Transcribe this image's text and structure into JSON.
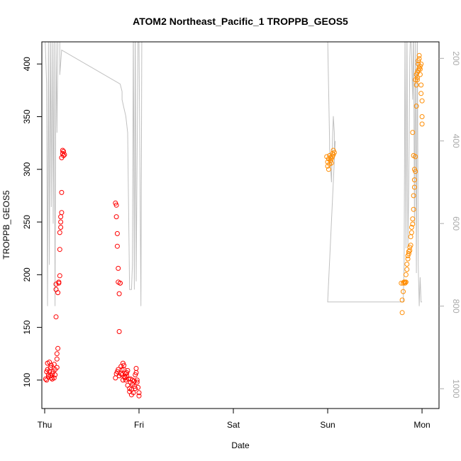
{
  "chart_data": {
    "type": "scatter",
    "title": "ATOM2 Northeast_Pacific_1 TROPPB_GEOS5",
    "xlabel": "Date",
    "ylabel": "TROPPB_GEOS5",
    "x_ticks": [
      "Thu",
      "Fri",
      "Sat",
      "Sun",
      "Mon"
    ],
    "xlim": [
      -0.03,
      4.18
    ],
    "ylim": [
      73,
      421
    ],
    "y_ticks": [
      100,
      150,
      200,
      250,
      300,
      350,
      400
    ],
    "y2_ticks": [
      200,
      400,
      600,
      800,
      1000
    ],
    "y2lim": [
      1048,
      160
    ],
    "grid": false,
    "colors": {
      "red": "#ff0000",
      "orange": "#ff8c00",
      "line": "#c0c0c0",
      "axis": "#000000",
      "right_axis": "#aaaaaa"
    },
    "line_series": {
      "axis": "right",
      "x": [
        0.0,
        0.02,
        0.03,
        0.04,
        0.05,
        0.06,
        0.07,
        0.08,
        0.09,
        0.1,
        0.11,
        0.12,
        0.13,
        0.14,
        0.16,
        0.16,
        0.18,
        0.8,
        0.82,
        0.82,
        0.84,
        0.86,
        0.88,
        0.9,
        0.92,
        0.93,
        0.94,
        0.95,
        0.96,
        0.97,
        0.99,
        1.0,
        1.02,
        1.03,
        1.3,
        1.4,
        1.5,
        2.0,
        2.5,
        3.0,
        3.02,
        3.02,
        3.03,
        3.04,
        3.05,
        3.06,
        3.07,
        3.07,
        3.08,
        3.0,
        3.8,
        3.81,
        3.82,
        3.83,
        3.84,
        3.85,
        3.86,
        3.87,
        3.88,
        3.89,
        3.9,
        3.91,
        3.92,
        3.93,
        3.94,
        3.95,
        3.96,
        3.97,
        3.98,
        3.99,
        4.0,
        4.0
      ],
      "y": [
        120,
        260,
        800,
        160,
        700,
        120,
        560,
        160,
        600,
        120,
        800,
        160,
        380,
        160,
        120,
        240,
        180,
        262,
        280,
        300,
        320,
        340,
        380,
        760,
        760,
        700,
        120,
        760,
        120,
        740,
        120,
        160,
        800,
        120,
        150,
        150,
        150,
        150,
        150,
        150,
        400,
        420,
        460,
        500,
        400,
        340,
        380,
        420,
        400,
        790,
        790,
        700,
        120,
        660,
        120,
        660,
        500,
        200,
        120,
        200,
        300,
        120,
        600,
        160,
        720,
        120,
        700,
        800,
        730,
        790,
        790,
        790
      ]
    },
    "red_series": {
      "axis": "left",
      "x": [
        0.01,
        0.02,
        0.02,
        0.03,
        0.03,
        0.04,
        0.04,
        0.05,
        0.05,
        0.06,
        0.06,
        0.07,
        0.07,
        0.08,
        0.08,
        0.09,
        0.1,
        0.1,
        0.11,
        0.11,
        0.12,
        0.12,
        0.12,
        0.13,
        0.13,
        0.13,
        0.14,
        0.14,
        0.15,
        0.15,
        0.16,
        0.16,
        0.16,
        0.17,
        0.17,
        0.17,
        0.18,
        0.18,
        0.18,
        0.19,
        0.19,
        0.2,
        0.2,
        0.21,
        0.75,
        0.76,
        0.76,
        0.77,
        0.77,
        0.78,
        0.78,
        0.79,
        0.79,
        0.8,
        0.8,
        0.81,
        0.81,
        0.82,
        0.82,
        0.83,
        0.83,
        0.84,
        0.84,
        0.85,
        0.85,
        0.86,
        0.86,
        0.87,
        0.87,
        0.88,
        0.88,
        0.89,
        0.9,
        0.9,
        0.91,
        0.91,
        0.92,
        0.92,
        0.93,
        0.93,
        0.94,
        0.95,
        0.95,
        0.96,
        0.96,
        0.97,
        0.97,
        0.98,
        0.98,
        0.99,
        1.0,
        1.0,
        0.75,
        0.76,
        0.77,
        0.78,
        0.79
      ],
      "y": [
        101,
        100,
        108,
        110,
        116,
        105,
        103,
        117,
        108,
        104,
        112,
        102,
        114,
        101,
        106,
        108,
        115,
        102,
        110,
        105,
        160,
        186,
        191,
        112,
        120,
        125,
        130,
        183,
        193,
        192,
        199,
        224,
        240,
        245,
        250,
        255,
        259,
        278,
        311,
        315,
        318,
        317,
        313,
        314,
        268,
        266,
        255,
        239,
        227,
        206,
        193,
        182,
        146,
        192,
        192,
        113,
        106,
        105,
        110,
        116,
        100,
        114,
        110,
        103,
        102,
        106,
        100,
        104,
        107,
        109,
        95,
        101,
        89,
        92,
        101,
        98,
        86,
        91,
        96,
        100,
        88,
        94,
        99,
        92,
        105,
        107,
        111,
        100,
        98,
        93,
        88,
        85,
        102,
        106,
        108,
        110,
        104
      ]
    },
    "orange_series": {
      "axis": "left",
      "x": [
        2.99,
        3.0,
        3.0,
        3.01,
        3.01,
        3.02,
        3.02,
        3.03,
        3.03,
        3.04,
        3.04,
        3.05,
        3.05,
        3.06,
        3.06,
        3.07,
        3.78,
        3.79,
        3.79,
        3.8,
        3.8,
        3.81,
        3.81,
        3.82,
        3.82,
        3.83,
        3.83,
        3.84,
        3.84,
        3.85,
        3.85,
        3.86,
        3.86,
        3.87,
        3.87,
        3.88,
        3.88,
        3.89,
        3.89,
        3.9,
        3.9,
        3.91,
        3.91,
        3.92,
        3.92,
        3.93,
        3.93,
        3.94,
        3.94,
        3.95,
        3.95,
        3.96,
        3.96,
        3.97,
        3.97,
        3.98,
        3.98,
        3.99,
        3.99,
        4.0,
        4.0,
        4.0,
        3.9,
        3.91,
        3.92,
        3.93,
        3.94,
        3.95,
        3.96,
        3.97,
        3.98,
        3.99
      ],
      "y": [
        312,
        303,
        307,
        310,
        300,
        313,
        305,
        311,
        308,
        310,
        306,
        312,
        315,
        314,
        318,
        316,
        192,
        176,
        164,
        184,
        192,
        193,
        193,
        192,
        193,
        193,
        200,
        205,
        210,
        215,
        218,
        220,
        222,
        223,
        226,
        228,
        236,
        240,
        245,
        248,
        253,
        262,
        275,
        283,
        290,
        298,
        312,
        360,
        380,
        385,
        387,
        400,
        403,
        405,
        408,
        395,
        390,
        380,
        372,
        365,
        350,
        343,
        335,
        313,
        300,
        385,
        390,
        392,
        394,
        396,
        398,
        400
      ]
    }
  }
}
